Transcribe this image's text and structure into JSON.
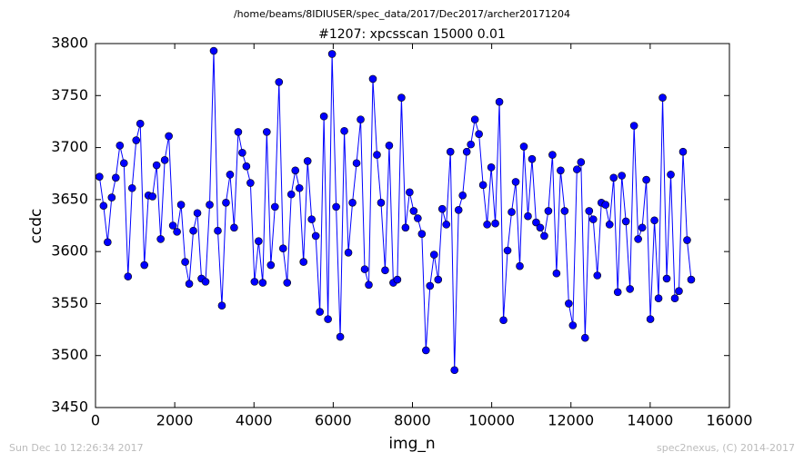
{
  "chart_data": {
    "type": "line",
    "suptitle": "/home/beams/8IDIUSER/spec_data/2017/Dec2017/archer20171204",
    "title": "#1207: xpcsscan 15000 0.01",
    "xlabel": "img_n",
    "ylabel": "ccdc",
    "footer_left": "Sun Dec 10 12:26:34 2017",
    "footer_right": "spec2nexus, (C) 2014-2017",
    "xlim": [
      0,
      16000
    ],
    "xticks": [
      0,
      2000,
      4000,
      6000,
      8000,
      10000,
      12000,
      14000,
      16000
    ],
    "ylim": [
      3450,
      3800
    ],
    "yticks": [
      3450,
      3500,
      3550,
      3600,
      3650,
      3700,
      3750,
      3800
    ],
    "x": [
      100,
      203,
      306,
      409,
      512,
      615,
      718,
      821,
      924,
      1027,
      1130,
      1233,
      1336,
      1439,
      1542,
      1645,
      1748,
      1851,
      1954,
      2057,
      2160,
      2263,
      2366,
      2469,
      2572,
      2675,
      2778,
      2881,
      2984,
      3087,
      3190,
      3293,
      3396,
      3499,
      3602,
      3705,
      3808,
      3911,
      4014,
      4117,
      4220,
      4323,
      4426,
      4529,
      4632,
      4735,
      4838,
      4941,
      5044,
      5147,
      5250,
      5353,
      5456,
      5559,
      5662,
      5765,
      5868,
      5971,
      6074,
      6177,
      6280,
      6383,
      6486,
      6589,
      6692,
      6795,
      6898,
      7001,
      7104,
      7207,
      7310,
      7413,
      7516,
      7619,
      7722,
      7825,
      7928,
      8031,
      8134,
      8237,
      8340,
      8443,
      8546,
      8649,
      8752,
      8855,
      8958,
      9061,
      9164,
      9267,
      9370,
      9473,
      9576,
      9679,
      9782,
      9885,
      9988,
      10091,
      10194,
      10297,
      10400,
      10503,
      10606,
      10709,
      10812,
      10915,
      11018,
      11121,
      11224,
      11327,
      11430,
      11533,
      11636,
      11739,
      11842,
      11945,
      12048,
      12151,
      12254,
      12357,
      12460,
      12563,
      12666,
      12769,
      12872,
      12975,
      13078,
      13181,
      13284,
      13387,
      13490,
      13593,
      13696,
      13799,
      13902,
      14005,
      14108,
      14211,
      14314,
      14417,
      14520,
      14623,
      14726,
      14829,
      14932,
      15035
    ],
    "series": [
      {
        "name": "ccdc",
        "color": "#0000ff",
        "values": [
          3672,
          3644,
          3609,
          3652,
          3671,
          3702,
          3685,
          3576,
          3661,
          3707,
          3723,
          3587,
          3654,
          3653,
          3683,
          3612,
          3688,
          3711,
          3625,
          3619,
          3645,
          3590,
          3569,
          3620,
          3637,
          3574,
          3571,
          3645,
          3793,
          3620,
          3548,
          3647,
          3674,
          3623,
          3715,
          3695,
          3682,
          3666,
          3571,
          3610,
          3570,
          3715,
          3587,
          3643,
          3763,
          3603,
          3570,
          3655,
          3678,
          3661,
          3590,
          3687,
          3631,
          3615,
          3542,
          3730,
          3535,
          3790,
          3643,
          3518,
          3716,
          3599,
          3647,
          3685,
          3727,
          3583,
          3568,
          3766,
          3693,
          3647,
          3582,
          3702,
          3570,
          3573,
          3748,
          3623,
          3657,
          3639,
          3632,
          3617,
          3505,
          3567,
          3597,
          3573,
          3641,
          3626,
          3696,
          3486,
          3640,
          3654,
          3696,
          3703,
          3727,
          3713,
          3664,
          3626,
          3681,
          3627,
          3744,
          3534,
          3601,
          3638,
          3667,
          3586,
          3701,
          3634,
          3689,
          3628,
          3623,
          3615,
          3639,
          3693,
          3579,
          3678,
          3639,
          3550,
          3529,
          3679,
          3686,
          3517,
          3639,
          3631,
          3577,
          3647,
          3645,
          3626,
          3671,
          3561,
          3673,
          3629,
          3564,
          3721,
          3612,
          3623,
          3669,
          3535,
          3630,
          3555,
          3748,
          3574,
          3674,
          3555,
          3562,
          3696,
          3611,
          3573
        ]
      }
    ]
  }
}
